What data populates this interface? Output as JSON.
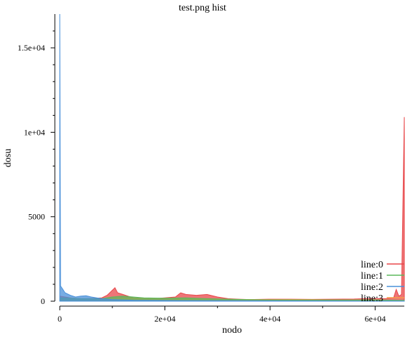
{
  "chart_data": {
    "type": "line",
    "title": "test.png hist",
    "xlabel": "nodo",
    "ylabel": "dosu",
    "xlim": [
      0,
      65535
    ],
    "ylim": [
      0,
      17000
    ],
    "x_ticks": [
      0,
      20000,
      40000,
      60000
    ],
    "x_tick_labels": [
      "0",
      "2e+04",
      "4e+04",
      "6e+04"
    ],
    "y_ticks": [
      0,
      5000,
      10000,
      15000
    ],
    "y_tick_labels": [
      "0",
      "5000",
      "1e+04",
      "1.5e+04"
    ],
    "grid": false,
    "legend_position": "bottom-right",
    "series": [
      {
        "name": "line:0",
        "color": "#e8474a",
        "points": [
          [
            0,
            300
          ],
          [
            2000,
            200
          ],
          [
            4000,
            150
          ],
          [
            6000,
            160
          ],
          [
            8000,
            200
          ],
          [
            9000,
            350
          ],
          [
            10000,
            650
          ],
          [
            10500,
            800
          ],
          [
            11000,
            500
          ],
          [
            12000,
            400
          ],
          [
            13000,
            300
          ],
          [
            14000,
            200
          ],
          [
            16000,
            180
          ],
          [
            18000,
            160
          ],
          [
            20000,
            200
          ],
          [
            22000,
            250
          ],
          [
            23000,
            500
          ],
          [
            24000,
            400
          ],
          [
            26000,
            350
          ],
          [
            28000,
            400
          ],
          [
            30000,
            250
          ],
          [
            32000,
            150
          ],
          [
            34000,
            120
          ],
          [
            36000,
            100
          ],
          [
            38000,
            110
          ],
          [
            40000,
            120
          ],
          [
            44000,
            120
          ],
          [
            48000,
            110
          ],
          [
            52000,
            120
          ],
          [
            56000,
            130
          ],
          [
            58000,
            150
          ],
          [
            60000,
            160
          ],
          [
            62000,
            150
          ],
          [
            63500,
            200
          ],
          [
            64000,
            700
          ],
          [
            64500,
            300
          ],
          [
            65000,
            400
          ],
          [
            65535,
            10900
          ]
        ]
      },
      {
        "name": "line:1",
        "color": "#5cb85c",
        "points": [
          [
            0,
            200
          ],
          [
            4000,
            150
          ],
          [
            8000,
            150
          ],
          [
            10000,
            250
          ],
          [
            12000,
            300
          ],
          [
            14000,
            250
          ],
          [
            16000,
            200
          ],
          [
            20000,
            180
          ],
          [
            24000,
            200
          ],
          [
            28000,
            150
          ],
          [
            32000,
            120
          ],
          [
            36000,
            90
          ],
          [
            40000,
            80
          ],
          [
            48000,
            70
          ],
          [
            56000,
            70
          ],
          [
            60000,
            80
          ],
          [
            64000,
            60
          ],
          [
            65535,
            50
          ]
        ]
      },
      {
        "name": "line:2",
        "color": "#4a90d9",
        "points": [
          [
            0,
            17000
          ],
          [
            150,
            900
          ],
          [
            500,
            750
          ],
          [
            1000,
            500
          ],
          [
            2000,
            350
          ],
          [
            3000,
            250
          ],
          [
            4000,
            300
          ],
          [
            5000,
            320
          ],
          [
            6000,
            250
          ],
          [
            7000,
            200
          ],
          [
            8000,
            150
          ],
          [
            10000,
            100
          ],
          [
            14000,
            60
          ],
          [
            20000,
            40
          ],
          [
            30000,
            30
          ],
          [
            40000,
            20
          ],
          [
            50000,
            15
          ],
          [
            60000,
            10
          ],
          [
            65535,
            8
          ]
        ]
      },
      {
        "name": "line:3",
        "color": "#f5a04a",
        "points": [
          [
            0,
            150
          ],
          [
            2000,
            200
          ],
          [
            4000,
            150
          ],
          [
            6000,
            120
          ],
          [
            8000,
            100
          ],
          [
            10000,
            120
          ],
          [
            12000,
            150
          ],
          [
            14000,
            180
          ],
          [
            16000,
            150
          ],
          [
            20000,
            130
          ],
          [
            24000,
            120
          ],
          [
            28000,
            140
          ],
          [
            32000,
            110
          ],
          [
            36000,
            100
          ],
          [
            40000,
            90
          ],
          [
            44000,
            100
          ],
          [
            48000,
            90
          ],
          [
            52000,
            80
          ],
          [
            56000,
            80
          ],
          [
            60000,
            70
          ],
          [
            64000,
            60
          ],
          [
            65535,
            50
          ]
        ]
      }
    ]
  }
}
